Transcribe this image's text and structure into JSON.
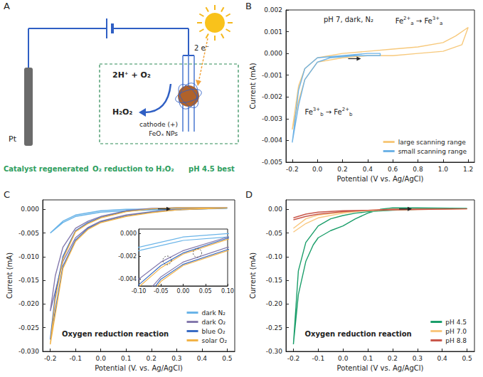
{
  "diagram": {
    "letter": "A",
    "electrode": "Pt",
    "electron_label": "2 e⁻",
    "reaction_left": "2H⁺ + O₂",
    "reaction_right": "H₂O₂",
    "cathode_label": "cathode (+)",
    "catalyst_label": "FeOₓ NPs",
    "footer": [
      "Catalyst regenerated",
      "O₂ reduction to H₂O₂",
      "pH 4.5 best"
    ]
  },
  "chart_data": [
    {
      "letter": "B",
      "type": "line",
      "x_label": "Potential (V vs. Ag/AgCl)",
      "y_label": "Current (mA)",
      "annotations": [
        {
          "text": "pH 7, dark, N₂"
        },
        {
          "runs": [
            {
              "text": "Fe"
            },
            {
              "sup": "2+"
            },
            {
              "sub": "a"
            },
            {
              "text": " → Fe"
            },
            {
              "sup": "3+"
            },
            {
              "sub": "a"
            }
          ]
        },
        {
          "runs": [
            {
              "text": "Fe"
            },
            {
              "sup": "3+"
            },
            {
              "sub": "b"
            },
            {
              "text": " → Fe"
            },
            {
              "sup": "2+"
            },
            {
              "sub": "b"
            }
          ]
        }
      ],
      "xlim": [
        -0.25,
        1.25
      ],
      "xticks": [
        -0.2,
        {
          "value": 0,
          "label": "0.0"
        },
        0.2,
        0.4,
        0.6,
        0.8,
        {
          "value": 1,
          "label": "1.0"
        },
        1.2
      ],
      "ylim": [
        -0.005,
        0.002
      ],
      "yticks": [
        -0.005,
        -0.004,
        -0.003,
        -0.002,
        -0.001,
        {
          "value": 0,
          "label": "0.000"
        },
        0.001,
        0.002
      ],
      "grid": false,
      "legend": "lower right",
      "series": [
        {
          "name": "large scanning range",
          "color": "#f7c97c",
          "x": [
            -0.2,
            -0.15,
            -0.1,
            0.0,
            0.2,
            0.4,
            0.6,
            0.8,
            1.0,
            1.1,
            1.2,
            1.15,
            1.0,
            0.8,
            0.6,
            0.4,
            0.2,
            0.0,
            -0.1,
            -0.15,
            -0.2
          ],
          "values": [
            -0.0035,
            -0.0015,
            -0.0007,
            -0.0002,
            0.0,
            0.0001,
            0.0002,
            0.0003,
            0.0005,
            0.0008,
            0.0012,
            0.0004,
            0.0001,
            0.0,
            -0.0001,
            -0.0001,
            -0.0002,
            -0.0004,
            -0.0012,
            -0.0022,
            -0.0035
          ]
        },
        {
          "name": "small scanning range",
          "color": "#6fb3e6",
          "x": [
            -0.2,
            -0.15,
            -0.1,
            0.0,
            0.2,
            0.4,
            0.5,
            0.5,
            0.3,
            0.1,
            0.0,
            -0.1,
            -0.15,
            -0.2
          ],
          "values": [
            -0.0041,
            -0.0017,
            -0.0007,
            -0.0002,
            -0.0001,
            0.0,
            0.0,
            -0.0001,
            -0.0001,
            -0.0002,
            -0.0004,
            -0.0012,
            -0.0024,
            -0.0041
          ]
        }
      ]
    },
    {
      "letter": "C",
      "type": "line",
      "x_label": "Potential (V. vs. Ag/AgCl)",
      "y_label": "Current (mA)",
      "annotations": [
        {
          "text": "Oxygen reduction reaction"
        }
      ],
      "xlim": [
        -0.23,
        0.53
      ],
      "xticks": [
        -0.2,
        -0.1,
        {
          "value": 0,
          "label": "0.0"
        },
        0.1,
        0.2,
        0.3,
        0.4,
        0.5
      ],
      "ylim": [
        -0.03,
        0.002
      ],
      "yticks": [
        {
          "value": -0.03,
          "label": "-0.030"
        },
        -0.025,
        {
          "value": -0.02,
          "label": "-0.020"
        },
        -0.015,
        {
          "value": -0.01,
          "label": "-0.010"
        },
        -0.005,
        {
          "value": 0,
          "label": "0.000"
        }
      ],
      "grid": false,
      "legend": "lower right",
      "inset": {
        "xlim": [
          -0.1,
          0.1
        ],
        "xticks": [
          {
            "value": -0.1,
            "label": "-0.10"
          },
          -0.05,
          {
            "value": 0,
            "label": "0.00"
          },
          0.05,
          {
            "value": 0.1,
            "label": "0.10"
          }
        ],
        "ylim": [
          -0.0046,
          0.0004
        ],
        "yticks": [
          -0.004,
          -0.002,
          {
            "value": 0,
            "label": "0.000"
          }
        ]
      },
      "series": [
        {
          "name": "dark N₂",
          "color": "#6ab4e8",
          "x": [
            -0.2,
            -0.15,
            -0.1,
            0.0,
            0.1,
            0.3,
            0.5,
            0.5,
            0.3,
            0.1,
            0.0,
            -0.1,
            -0.15,
            -0.2
          ],
          "values": [
            -0.005,
            -0.0025,
            -0.0012,
            -0.0003,
            0.0,
            0.0001,
            0.0002,
            0.0001,
            0.0,
            -0.0003,
            -0.0006,
            -0.0015,
            -0.0028,
            -0.005
          ]
        },
        {
          "name": "dark O₂",
          "color": "#8479ad",
          "x": [
            -0.2,
            -0.18,
            -0.15,
            -0.1,
            -0.05,
            0.0,
            0.1,
            0.2,
            0.3,
            0.5,
            0.5,
            0.3,
            0.2,
            0.1,
            0.0,
            -0.05,
            -0.1,
            -0.15,
            -0.2
          ],
          "values": [
            -0.0215,
            -0.014,
            -0.008,
            -0.004,
            -0.0025,
            -0.0015,
            -0.0003,
            0.0002,
            0.0003,
            0.0003,
            0.0002,
            0.0,
            -0.0005,
            -0.0012,
            -0.0025,
            -0.0038,
            -0.006,
            -0.011,
            -0.0215
          ]
        },
        {
          "name": "blue O₂",
          "color": "#3a6cc4",
          "x": [
            -0.2,
            -0.18,
            -0.15,
            -0.1,
            -0.05,
            0.0,
            0.1,
            0.2,
            0.3,
            0.5,
            0.5,
            0.3,
            0.2,
            0.1,
            0.0,
            -0.05,
            -0.1,
            -0.15,
            -0.2
          ],
          "values": [
            -0.0275,
            -0.018,
            -0.01,
            -0.0045,
            -0.0028,
            -0.0017,
            -0.0004,
            0.0001,
            0.0003,
            0.0003,
            0.0002,
            -0.0001,
            -0.0006,
            -0.0014,
            -0.0027,
            -0.004,
            -0.0065,
            -0.012,
            -0.0275
          ]
        },
        {
          "name": "solar O₂",
          "color": "#f2b347",
          "x": [
            -0.2,
            -0.18,
            -0.15,
            -0.1,
            -0.05,
            0.0,
            0.1,
            0.2,
            0.3,
            0.5,
            0.5,
            0.3,
            0.2,
            0.1,
            0.0,
            -0.05,
            -0.1,
            -0.15,
            -0.2
          ],
          "values": [
            -0.0285,
            -0.019,
            -0.0105,
            -0.0047,
            -0.003,
            -0.0018,
            -0.0005,
            0.0001,
            0.0003,
            0.0003,
            0.0002,
            -0.0001,
            -0.0007,
            -0.0015,
            -0.0028,
            -0.0042,
            -0.0068,
            -0.0125,
            -0.0285
          ]
        }
      ]
    },
    {
      "letter": "D",
      "type": "line",
      "x_label": "Potential (V vs. Ag/AgCl)",
      "y_label": "Current (mA)",
      "annotations": [
        {
          "text": "Oxygen reduction reaction"
        }
      ],
      "xlim": [
        -0.23,
        0.53
      ],
      "xticks": [
        -0.2,
        -0.1,
        {
          "value": 0,
          "label": "0.0"
        },
        0.1,
        0.2,
        0.3,
        0.4,
        0.5
      ],
      "ylim": [
        -0.3,
        0.02
      ],
      "yticks": [
        {
          "value": -0.3,
          "label": "-0.30"
        },
        -0.25,
        {
          "value": -0.2,
          "label": "-0.20"
        },
        -0.15,
        {
          "value": -0.1,
          "label": "-0.10"
        },
        -0.05,
        {
          "value": 0,
          "label": "0.00"
        }
      ],
      "grid": false,
      "legend": "lower right",
      "series": [
        {
          "name": "pH 4.5",
          "color": "#1b9e6a",
          "x": [
            -0.2,
            -0.18,
            -0.15,
            -0.12,
            -0.1,
            -0.05,
            0.0,
            0.05,
            0.1,
            0.15,
            0.2,
            0.3,
            0.5,
            0.5,
            0.3,
            0.2,
            0.1,
            0.05,
            0.0,
            -0.05,
            -0.1,
            -0.15,
            -0.18,
            -0.2
          ],
          "values": [
            -0.285,
            -0.18,
            -0.11,
            -0.075,
            -0.06,
            -0.045,
            -0.035,
            -0.02,
            -0.008,
            0.0,
            0.003,
            0.003,
            0.002,
            0.001,
            0.0,
            -0.002,
            -0.005,
            -0.008,
            -0.013,
            -0.02,
            -0.035,
            -0.07,
            -0.13,
            -0.285
          ]
        },
        {
          "name": "pH 7.0",
          "color": "#f9c77e",
          "x": [
            -0.2,
            -0.15,
            -0.1,
            0.0,
            0.1,
            0.2,
            0.5,
            0.5,
            0.2,
            0.1,
            0.0,
            -0.1,
            -0.15,
            -0.2
          ],
          "values": [
            -0.048,
            -0.03,
            -0.018,
            -0.008,
            -0.002,
            0.0,
            0.001,
            0.0005,
            -0.001,
            -0.003,
            -0.006,
            -0.012,
            -0.02,
            -0.04
          ]
        },
        {
          "name": "pH 8.8",
          "color": "#c9574a",
          "x": [
            -0.2,
            -0.15,
            -0.1,
            0.0,
            0.1,
            0.2,
            0.5,
            0.5,
            0.2,
            0.1,
            0.0,
            -0.1,
            -0.15,
            -0.2
          ],
          "values": [
            -0.022,
            -0.015,
            -0.01,
            -0.005,
            -0.002,
            0.0,
            0.001,
            0.0,
            -0.001,
            -0.002,
            -0.003,
            -0.006,
            -0.01,
            -0.018
          ]
        }
      ]
    }
  ]
}
